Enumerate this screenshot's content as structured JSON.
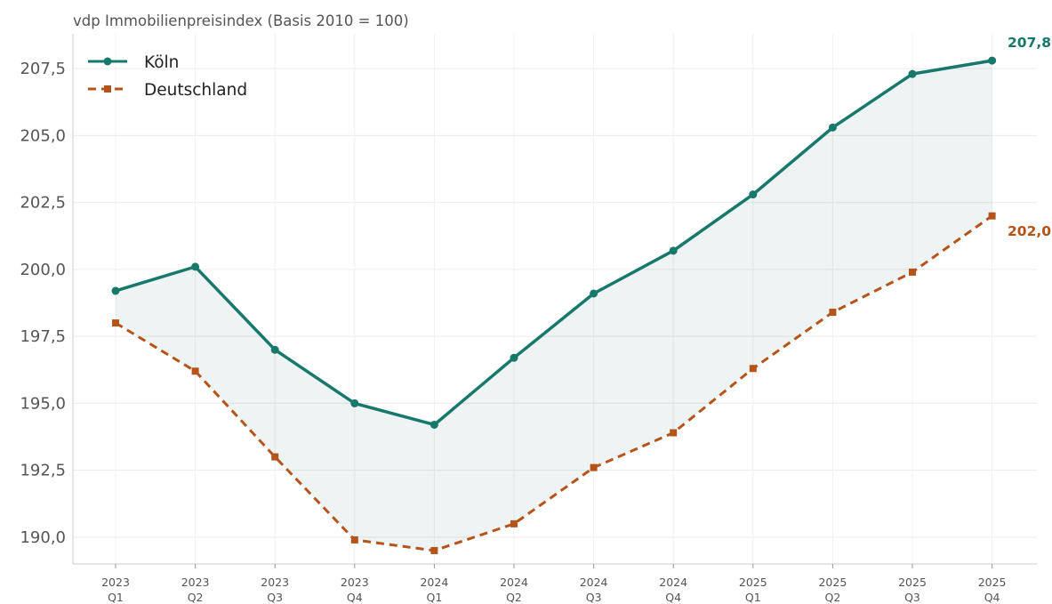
{
  "chart_data": {
    "type": "line",
    "title": "vdp Immobilienpreisindex (Basis 2010 = 100)",
    "xlabel": "",
    "ylabel": "",
    "categories": [
      [
        "2023",
        "Q1"
      ],
      [
        "2023",
        "Q2"
      ],
      [
        "2023",
        "Q3"
      ],
      [
        "2023",
        "Q4"
      ],
      [
        "2024",
        "Q1"
      ],
      [
        "2024",
        "Q2"
      ],
      [
        "2024",
        "Q3"
      ],
      [
        "2024",
        "Q4"
      ],
      [
        "2025",
        "Q1"
      ],
      [
        "2025",
        "Q2"
      ],
      [
        "2025",
        "Q3"
      ],
      [
        "2025",
        "Q4"
      ]
    ],
    "ylim": [
      189.0,
      208.8
    ],
    "yticks": [
      190.0,
      192.5,
      195.0,
      197.5,
      200.0,
      202.5,
      205.0,
      207.5
    ],
    "ytick_labels": [
      "190,0",
      "192,5",
      "195,0",
      "197,5",
      "200,0",
      "202,5",
      "205,0",
      "207,5"
    ],
    "grid": true,
    "legend_position": "top-left",
    "fill_between_series": true,
    "series": [
      {
        "name": "Köln",
        "color": "#17786b",
        "line_style": "solid",
        "marker": "circle",
        "values": [
          199.2,
          200.1,
          197.0,
          195.0,
          194.2,
          196.7,
          199.1,
          200.7,
          202.8,
          205.3,
          207.3,
          207.8
        ],
        "end_label": "207,8"
      },
      {
        "name": "Deutschland",
        "color": "#b5541a",
        "line_style": "dashed",
        "marker": "square",
        "values": [
          198.0,
          196.2,
          193.0,
          189.9,
          189.5,
          190.5,
          192.6,
          193.9,
          196.3,
          198.4,
          199.9,
          202.0
        ],
        "end_label": "202,0"
      }
    ],
    "fill_color": "#17786b"
  }
}
